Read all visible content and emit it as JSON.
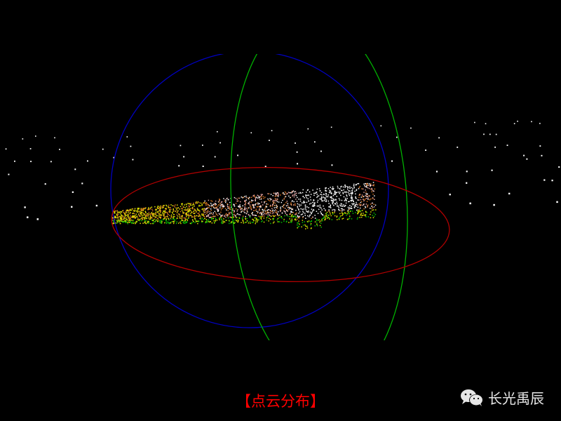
{
  "caption": "【点云分布】",
  "watermark": {
    "icon": "wechat-icon",
    "text": "长光禹辰"
  },
  "colors": {
    "background": "#000000",
    "caption": "#ff0000",
    "ring_horizontal": "#b00000",
    "ring_vertical_1": "#0000c0",
    "ring_vertical_2": "#00b000",
    "ground_points": "#ffffff",
    "cloud_gradient": [
      "#00c000",
      "#e0e000",
      "#d07020",
      "#e0a0a0",
      "#ffffff"
    ]
  }
}
